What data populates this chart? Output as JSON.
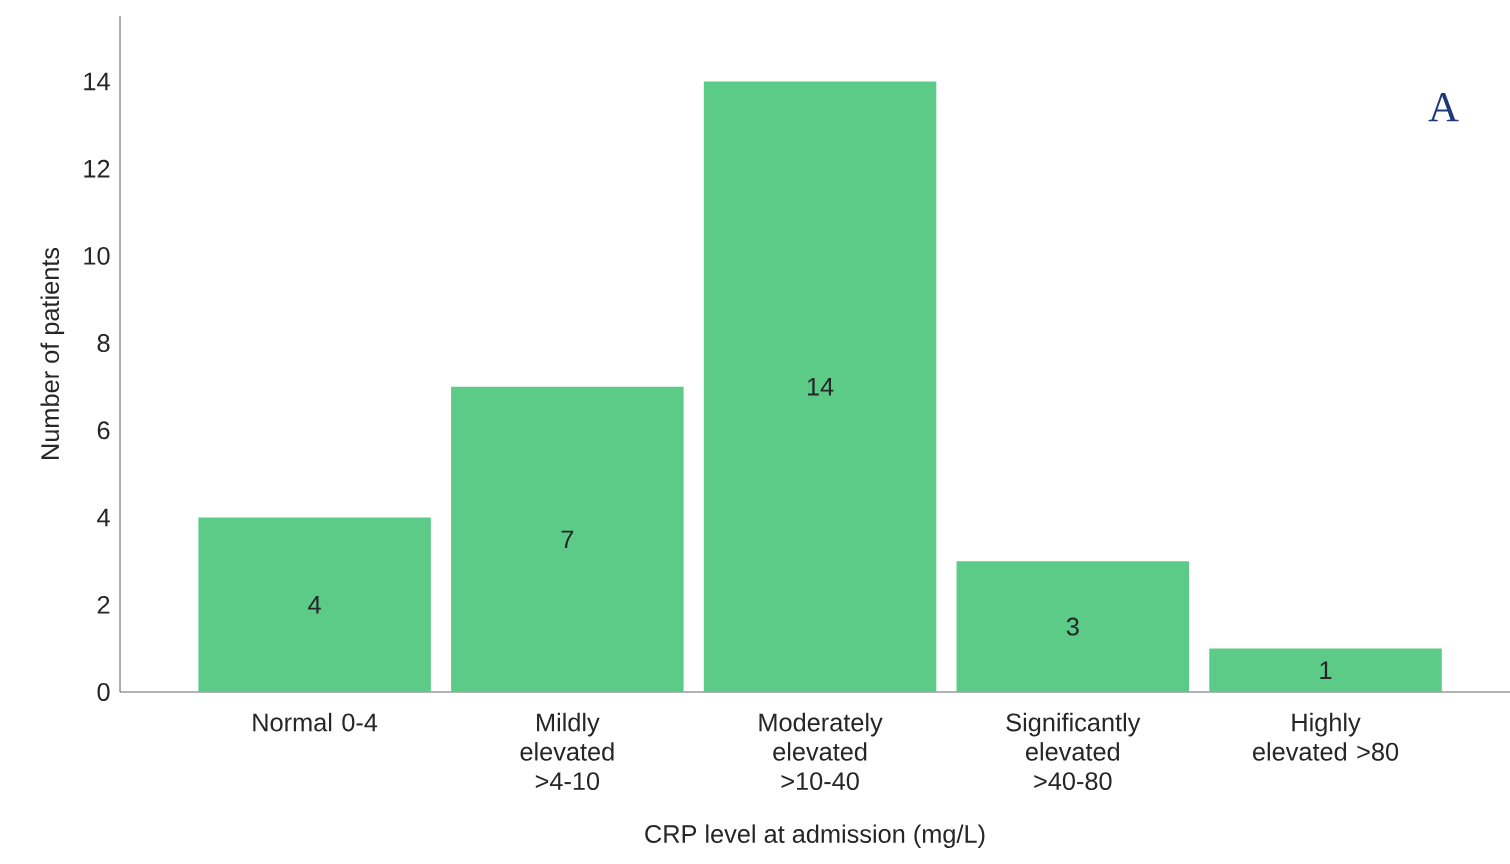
{
  "chart_data": {
    "type": "bar",
    "xlabel": "CRP level at admission (mg/L)",
    "ylabel": "Number of patients",
    "categories": [
      "Normal 0-4",
      "Mildly elevated >4-10",
      "Moderately elevated >10-40",
      "Significantly elevated >40-80",
      "Highly elevated >80"
    ],
    "values": [
      4,
      7,
      14,
      3,
      1
    ],
    "color": "#5ccb88",
    "data_labels": true,
    "ylim": [
      0,
      15.5
    ],
    "yticks": [
      0,
      2,
      4,
      6,
      8,
      10,
      12,
      14
    ],
    "grid": false,
    "annotations": [
      "A"
    ]
  }
}
